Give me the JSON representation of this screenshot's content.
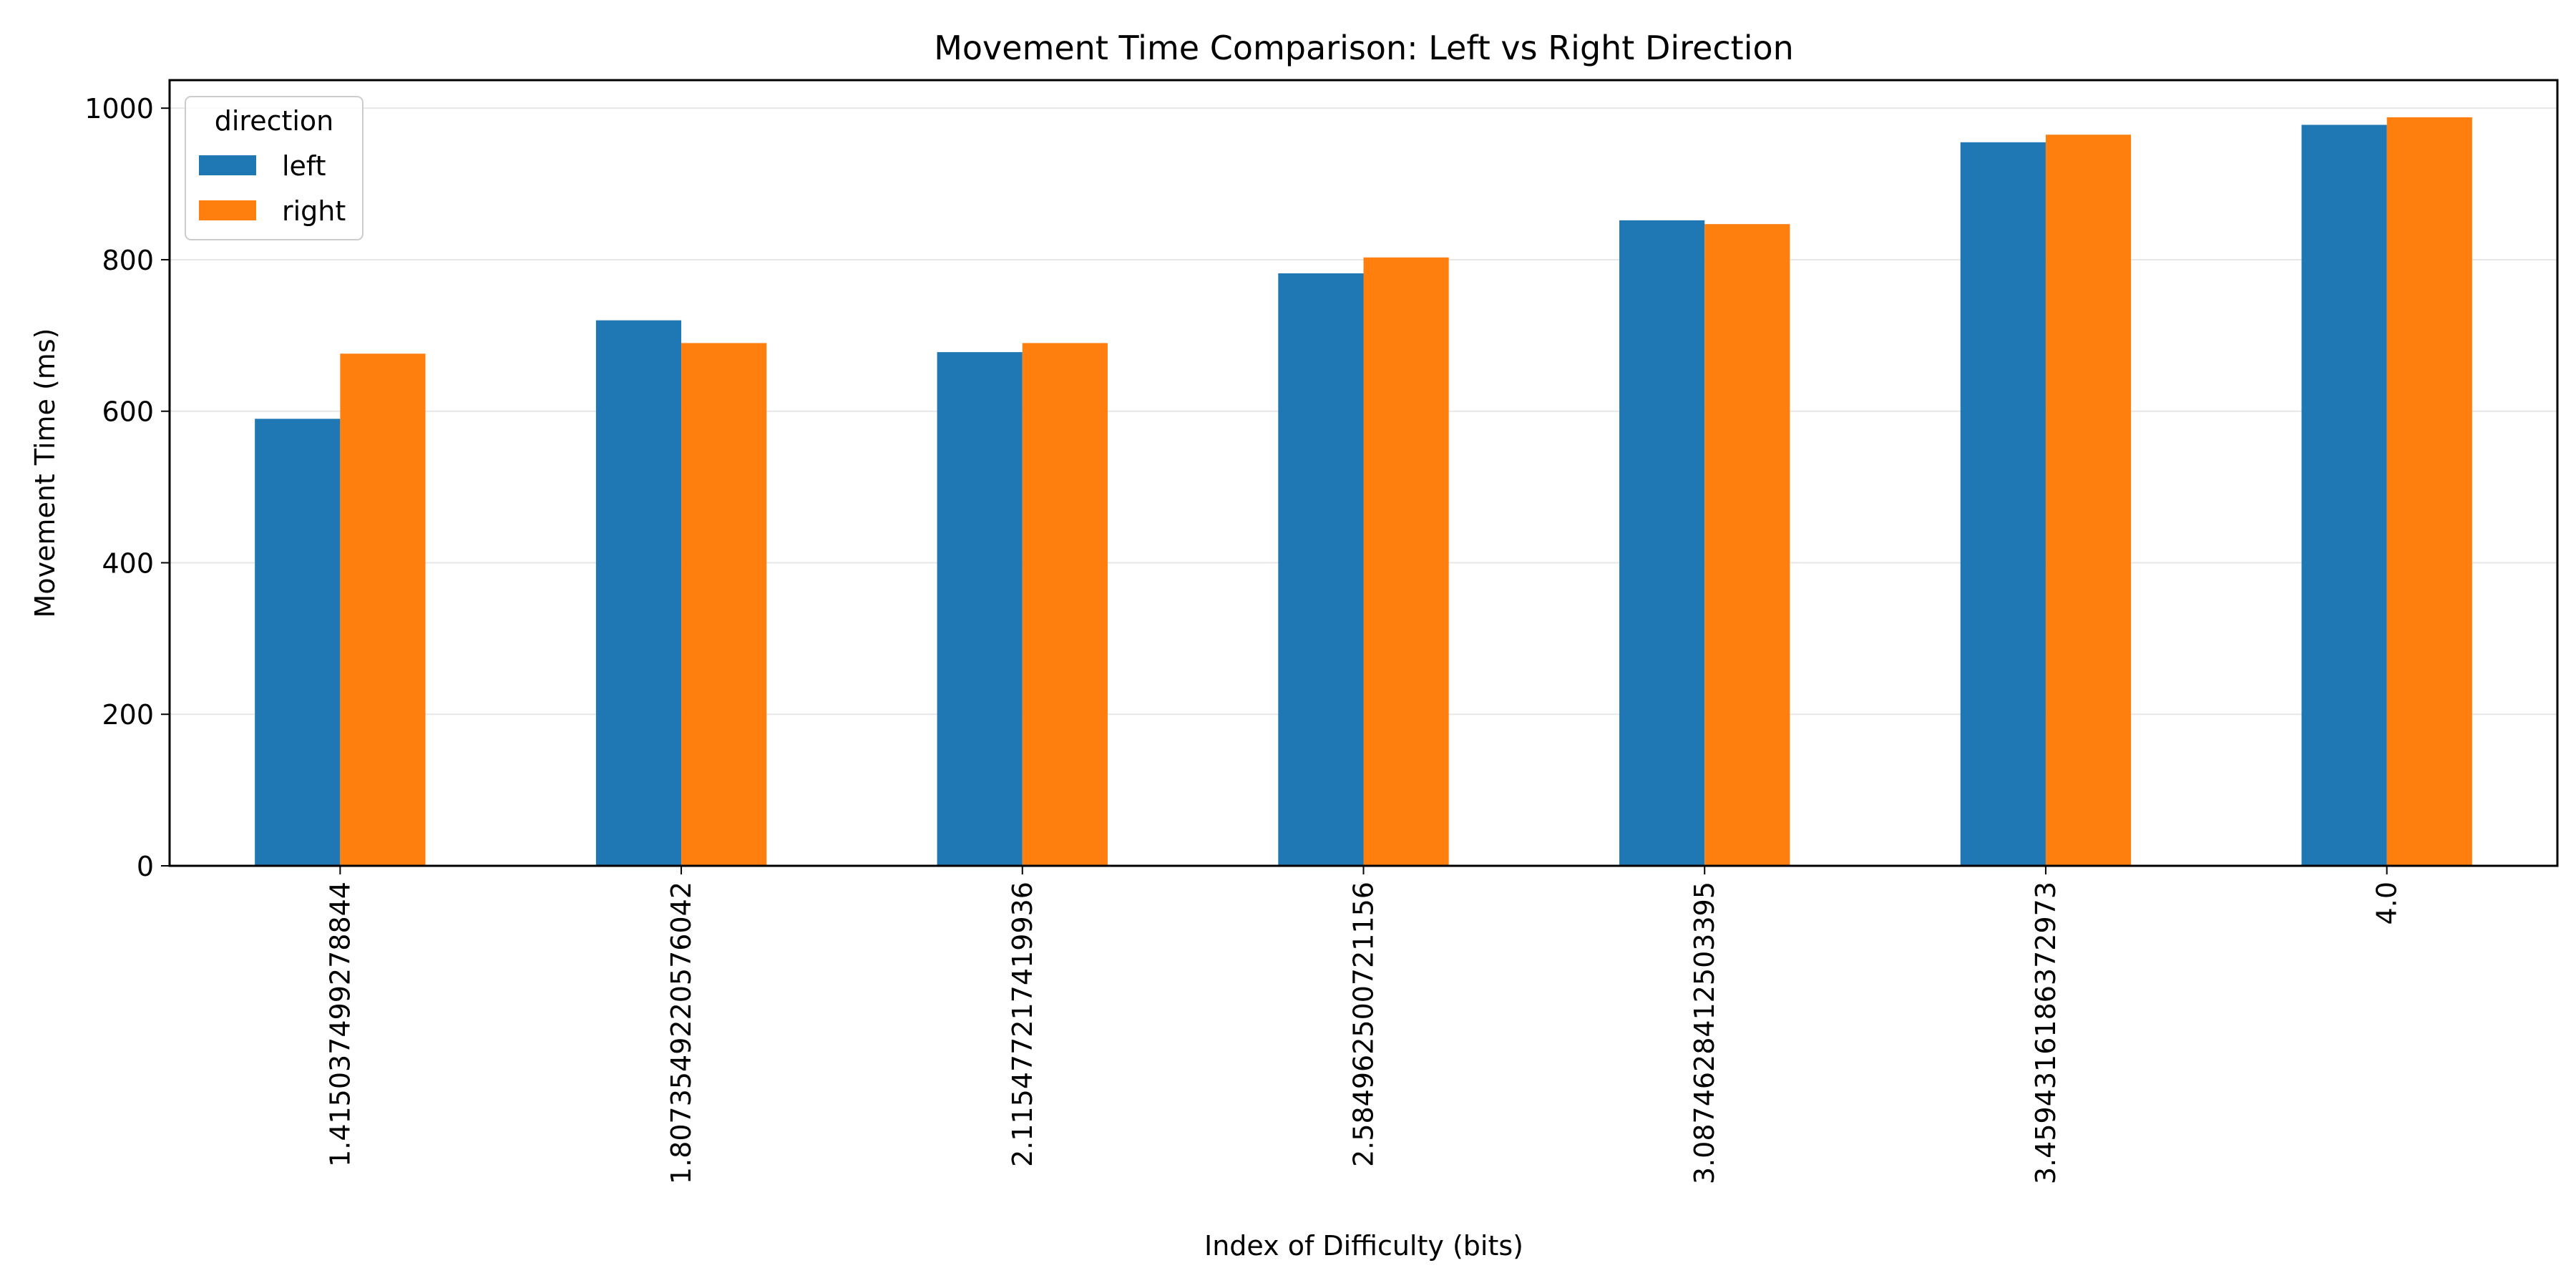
{
  "chart_data": {
    "type": "bar",
    "title": "Movement Time Comparison: Left vs Right Direction",
    "xlabel": "Index of Difficulty (bits)",
    "ylabel": "Movement Time (ms)",
    "categories": [
      "1.415037499278844",
      "1.8073549220576042",
      "2.115477217419936",
      "2.584962500721156",
      "3.0874628412503395",
      "3.4594316186372973",
      "4.0"
    ],
    "series": [
      {
        "name": "left",
        "color": "#1f77b4",
        "values": [
          590,
          720,
          678,
          782,
          852,
          955,
          978
        ]
      },
      {
        "name": "right",
        "color": "#ff7f0e",
        "values": [
          676,
          690,
          690,
          803,
          847,
          965,
          988
        ]
      }
    ],
    "ylim": [
      0,
      1037
    ],
    "yticks": [
      0,
      200,
      400,
      600,
      800,
      1000
    ],
    "grid": "y",
    "legend": {
      "title": "direction",
      "position": "upper-left"
    }
  }
}
